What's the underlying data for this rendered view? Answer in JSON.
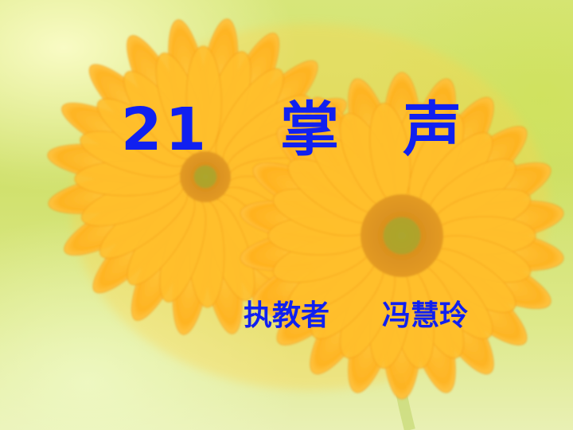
{
  "slide": {
    "title": {
      "number": "21",
      "char1": "掌",
      "char2": "声"
    },
    "byline": {
      "role": "执教者",
      "name": "冯慧玲"
    }
  },
  "colors": {
    "text": "#1020f0",
    "petal": "#ffb21e",
    "petal_light": "#ffd45a",
    "center": "#d9871a",
    "background": "#d7e679"
  }
}
